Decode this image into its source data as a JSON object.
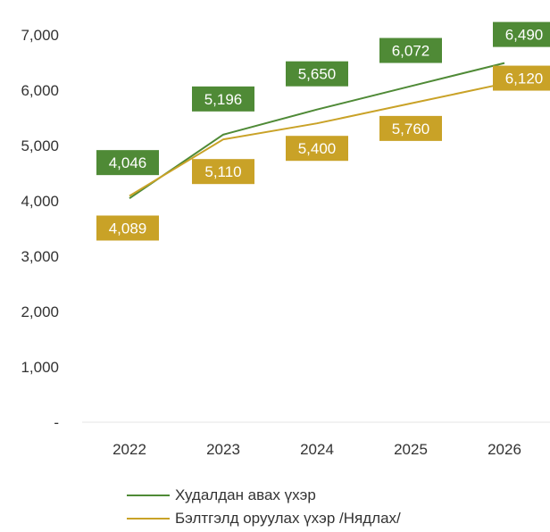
{
  "chart_data": {
    "type": "line",
    "categories": [
      "2022",
      "2023",
      "2024",
      "2025",
      "2026"
    ],
    "ylim": [
      0,
      7000
    ],
    "yticks": [
      "-",
      "1,000",
      "2,000",
      "3,000",
      "4,000",
      "5,000",
      "6,000",
      "7,000"
    ],
    "yticks_values": [
      0,
      1000,
      2000,
      3000,
      4000,
      5000,
      6000,
      7000
    ],
    "grid": false,
    "legend_position": "bottom",
    "series": [
      {
        "name": "Худалдан авах үхэр",
        "color": "#4f8a36",
        "values": [
          4046,
          5196,
          5650,
          6072,
          6490
        ],
        "labels": [
          "4,046",
          "5,196",
          "5,650",
          "6,072",
          "6,490"
        ]
      },
      {
        "name": "Бэлтгэлд оруулах үхэр /Нядлах/",
        "color": "#c9a227",
        "values": [
          4089,
          5110,
          5400,
          5760,
          6120
        ],
        "labels": [
          "4,089",
          "5,110",
          "5,400",
          "5,760",
          "6,120"
        ]
      }
    ]
  }
}
